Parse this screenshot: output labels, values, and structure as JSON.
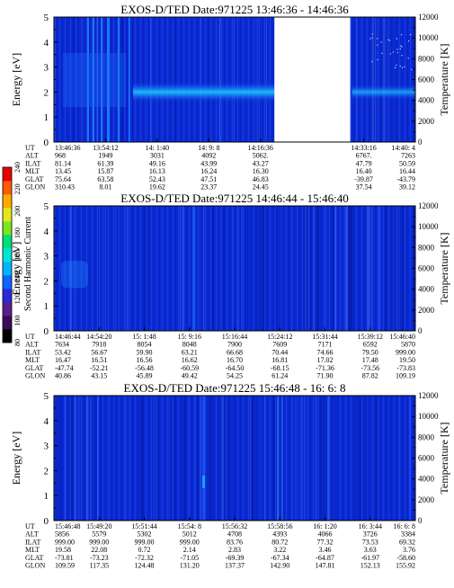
{
  "chart_data": [
    {
      "type": "heatmap",
      "title": "EXOS-D/TED   Date:971225   13:46:36 - 14:46:36",
      "ylabel": "Energy [eV]",
      "y2label": "Temperature [K]",
      "ylim": [
        0,
        5
      ],
      "y2lim": [
        0,
        12000
      ],
      "yticks": [
        0,
        1,
        2,
        3,
        4,
        5
      ],
      "y2ticks": [
        0,
        2000,
        4000,
        6000,
        8000,
        10000,
        12000
      ],
      "data_gap": [
        0.61,
        0.82
      ],
      "band_energy": 2.0,
      "orbit": {
        "labels": [
          "UT",
          "ALT",
          "ILAT",
          "MLT",
          "GLAT",
          "GLON"
        ],
        "columns": [
          [
            "13:46:36",
            "968",
            "81.14",
            "13.45",
            "75.64",
            "310.43"
          ],
          [
            "13:54:12",
            "1949",
            "61.39",
            "15.87",
            "63.58",
            "8.01"
          ],
          [
            "14: 1:40",
            "3031",
            "49.16",
            "16.13",
            "52.43",
            "19.62"
          ],
          [
            "14: 9: 8",
            "4092",
            "43.99",
            "16.24",
            "47.51",
            "23.37"
          ],
          [
            "14:16:36",
            "5062.",
            "43.27",
            "16.30",
            "46.83",
            "24.45"
          ],
          [
            "",
            "",
            "",
            "",
            "",
            ""
          ],
          [
            "14:33:16",
            "6767.",
            "47.79",
            "16.40",
            "-39.87",
            "37.54"
          ],
          [
            "14:40: 4",
            "7263",
            "50.59",
            "16.44",
            "-43.79",
            "39.12"
          ]
        ]
      }
    },
    {
      "type": "heatmap",
      "title": "EXOS-D/TED   Date:971225   14:46:44 - 15:46:40",
      "ylabel": "Energy [eV]",
      "y2label": "Temperature [K]",
      "ylim": [
        0,
        5
      ],
      "y2lim": [
        0,
        12000
      ],
      "yticks": [
        0,
        1,
        2,
        3,
        4,
        5
      ],
      "y2ticks": [
        0,
        2000,
        4000,
        6000,
        8000,
        10000,
        12000
      ],
      "orbit": {
        "labels": [
          "UT",
          "ALT",
          "ILAT",
          "MLT",
          "GLAT",
          "GLON"
        ],
        "columns": [
          [
            "14:46:44",
            "7634",
            "53.42",
            "16.47",
            "-47.74",
            "40.86"
          ],
          [
            "14:54:20",
            "7918",
            "56.67",
            "16.51",
            "-52.21",
            "43.15"
          ],
          [
            "15: 1:48",
            "8054",
            "59.90",
            "16.56",
            "-56.48",
            "45.89"
          ],
          [
            "15: 9:16",
            "8048",
            "63.21",
            "16.62",
            "-60.59",
            "49.42"
          ],
          [
            "15:16:44",
            "7900",
            "66.68",
            "16.70",
            "-64.50",
            "54.25"
          ],
          [
            "15:24:12",
            "7609",
            "70.44",
            "16.81",
            "-68.15",
            "61.24"
          ],
          [
            "15:31:44",
            "7171",
            "74.66",
            "17.02",
            "-71.36",
            "71.90"
          ],
          [
            "15:39:12",
            "6592",
            "79.50",
            "17.48",
            "-73.56",
            "87.82"
          ],
          [
            "15:46:40",
            "5870",
            "999.00",
            "19.50",
            "-73.83",
            "109.19"
          ]
        ]
      }
    },
    {
      "type": "heatmap",
      "title": "EXOS-D/TED   Date:971225   15:46:48 - 16: 6: 8",
      "ylabel": "Energy [eV]",
      "y2label": "Temperature [K]",
      "ylim": [
        0,
        5
      ],
      "y2lim": [
        0,
        12000
      ],
      "yticks": [
        0,
        1,
        2,
        3,
        4,
        5
      ],
      "y2ticks": [
        0,
        2000,
        4000,
        6000,
        8000,
        10000,
        12000
      ],
      "orbit": {
        "labels": [
          "UT",
          "ALT",
          "ILAT",
          "MLT",
          "GLAT",
          "GLON"
        ],
        "columns": [
          [
            "15:46:48",
            "5856",
            "999.00",
            "19.58",
            "-73.81",
            "109.59"
          ],
          [
            "15:49:20",
            "5579",
            "999.00",
            "22.08",
            "-73.23",
            "117.35"
          ],
          [
            "15:51:44",
            "5302",
            "999.00",
            "0.72",
            "-72.32",
            "124.48"
          ],
          [
            "15:54: 8",
            "5012",
            "999.00",
            "2.14",
            "-71.05",
            "131.20"
          ],
          [
            "15:56:32",
            "4708",
            "83.76",
            "2.83",
            "-69.39",
            "137.37"
          ],
          [
            "15:58:56",
            "4393",
            "80.72",
            "3.22",
            "-67.34",
            "142.90"
          ],
          [
            "16: 1:20",
            "4066",
            "77.32",
            "3.46",
            "-64.87",
            "147.81"
          ],
          [
            "16: 3:44",
            "3726",
            "73.53",
            "3.63",
            "-61.97",
            "152.13"
          ],
          [
            "16: 6: 8",
            "3384",
            "69.32",
            "3.76",
            "-58.60",
            "155.92"
          ]
        ]
      }
    }
  ],
  "colorbar": {
    "label": "Second Harmonic Current",
    "ticks": [
      80,
      100,
      120,
      140,
      160,
      180,
      200,
      220,
      240
    ],
    "colors": [
      "#000000",
      "#3c0a5a",
      "#5a1e8c",
      "#2a2ad8",
      "#0a64ff",
      "#00b4ff",
      "#00e6d2",
      "#00dc78",
      "#7ae61e",
      "#e6e61e",
      "#ffaa00",
      "#ff5a00",
      "#e60000"
    ]
  },
  "colors": {
    "background": "#0a2ad2",
    "band": "#14c8f0",
    "gap": "#ffffff"
  }
}
